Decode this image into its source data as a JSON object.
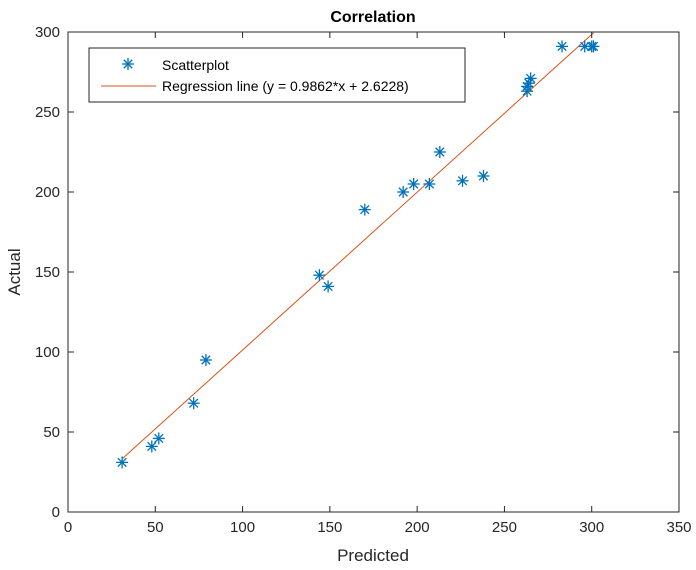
{
  "chart_data": {
    "type": "scatter",
    "title": "Correlation",
    "xlabel": "Predicted",
    "ylabel": "Actual",
    "xlim": [
      0,
      350
    ],
    "ylim": [
      0,
      300
    ],
    "xticks": [
      "0",
      "50",
      "100",
      "150",
      "200",
      "250",
      "300",
      "350"
    ],
    "yticks": [
      "0",
      "50",
      "100",
      "150",
      "200",
      "250",
      "300"
    ],
    "grid": false,
    "legend_position": "top-left",
    "series": [
      {
        "name": "Scatterplot",
        "kind": "scatter",
        "marker": "asterisk",
        "color": "#0072BD",
        "x": [
          31,
          48,
          52,
          72,
          79,
          144,
          149,
          170,
          192,
          198,
          207,
          213,
          226,
          238,
          263,
          263,
          264,
          265,
          283,
          296,
          300,
          301
        ],
        "y": [
          31,
          41,
          46,
          68,
          95,
          148,
          141,
          189,
          200,
          205,
          205,
          225,
          207,
          210,
          263,
          266,
          268,
          271,
          291,
          291,
          291,
          291
        ]
      },
      {
        "name": "Regression line (y = 0.9862*x + 2.6228)",
        "kind": "line",
        "color": "#D95319",
        "slope": 0.9862,
        "intercept": 2.6228,
        "x_range": [
          31,
          301
        ]
      }
    ]
  }
}
